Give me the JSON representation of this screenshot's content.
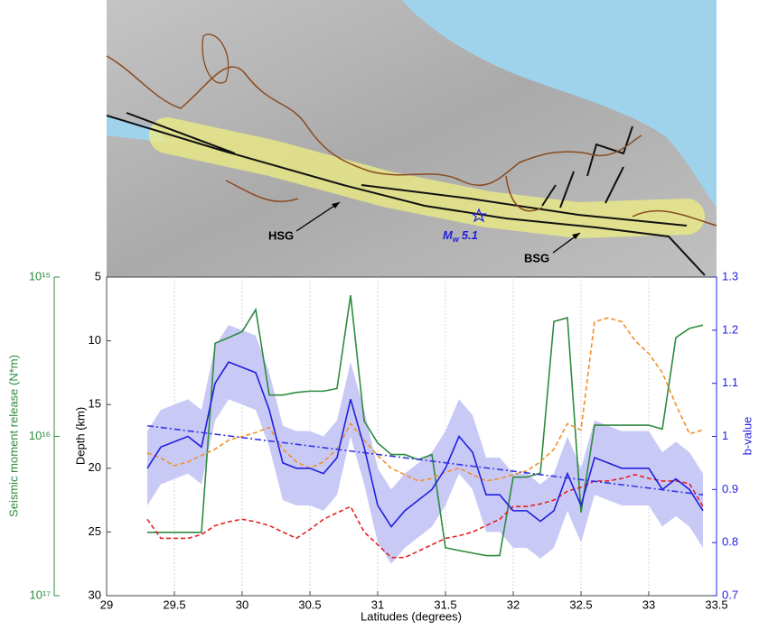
{
  "map": {
    "labels": {
      "hsg": "HSG",
      "bsg": "BSG",
      "event_symbol": "M",
      "event_subscript": "w",
      "event_value": "5.1"
    }
  },
  "chart_data": {
    "type": "line",
    "xlabel": "Latitudes (degrees)",
    "ylabel": "Depth (km)",
    "y2label": "b-value",
    "y3label": "Seismic moment release (N*m)",
    "x": [
      29.3,
      29.4,
      29.5,
      29.6,
      29.7,
      29.8,
      29.9,
      30.0,
      30.1,
      30.2,
      30.3,
      30.4,
      30.5,
      30.6,
      30.7,
      30.8,
      30.9,
      31.0,
      31.1,
      31.2,
      31.3,
      31.4,
      31.5,
      31.6,
      31.7,
      31.8,
      31.9,
      32.0,
      32.1,
      32.2,
      32.3,
      32.4,
      32.5,
      32.6,
      32.7,
      32.8,
      32.9,
      33.0,
      33.1,
      33.2,
      33.3,
      33.4
    ],
    "xlim": [
      29,
      33.5
    ],
    "xticks": [
      29,
      29.5,
      30,
      30.5,
      31,
      31.5,
      32,
      32.5,
      33,
      33.5
    ],
    "ylim": [
      30,
      5
    ],
    "yticks": [
      5,
      10,
      15,
      20,
      25,
      30
    ],
    "y2lim": [
      0.7,
      1.3
    ],
    "y2ticks": [
      0.7,
      0.8,
      0.9,
      1,
      1.1,
      1.2,
      1.3
    ],
    "y3lim": [
      1e+17,
      1000000000000000.0
    ],
    "y3scale": "log",
    "y3ticks": [
      {
        "value": 1000000000000000.0,
        "label": "10¹⁵"
      },
      {
        "value": 1e+16,
        "label": "10¹⁶"
      },
      {
        "value": 1e+17,
        "label": "10¹⁷"
      }
    ],
    "grid": true,
    "series": [
      {
        "kind": "band",
        "axis": "y2",
        "color": "#c9c9f6",
        "upper": [
          1.01,
          1.05,
          1.06,
          1.07,
          1.05,
          1.17,
          1.21,
          1.2,
          1.19,
          1.12,
          1.02,
          1.01,
          1.01,
          1.0,
          1.03,
          1.14,
          1.05,
          0.94,
          0.9,
          0.93,
          0.95,
          0.97,
          1.01,
          1.07,
          1.04,
          0.96,
          0.96,
          0.93,
          0.93,
          0.91,
          0.93,
          1.0,
          0.94,
          1.03,
          1.02,
          1.01,
          1.01,
          1.01,
          0.97,
          0.99,
          0.97,
          0.93
        ],
        "lower": [
          0.87,
          0.91,
          0.92,
          0.93,
          0.91,
          1.03,
          1.07,
          1.06,
          1.05,
          0.98,
          0.88,
          0.87,
          0.87,
          0.86,
          0.89,
          1.0,
          0.91,
          0.8,
          0.76,
          0.79,
          0.81,
          0.83,
          0.87,
          0.93,
          0.9,
          0.82,
          0.82,
          0.79,
          0.79,
          0.77,
          0.79,
          0.86,
          0.8,
          0.89,
          0.88,
          0.87,
          0.87,
          0.87,
          0.83,
          0.85,
          0.83,
          0.79
        ]
      },
      {
        "axis": "y3",
        "style": "solid",
        "color": "#2e8b3e",
        "values": [
          4e+16,
          4e+16,
          4e+16,
          4e+16,
          4e+16,
          2600000000000000.0,
          2400000000000000.0,
          2200000000000000.0,
          1600000000000000.0,
          5500000000000000.0,
          5500000000000000.0,
          5300000000000000.0,
          5200000000000000.0,
          5200000000000000.0,
          5000000000000000.0,
          1300000000000000.0,
          8000000000000000.0,
          1.1e+16,
          1.3e+16,
          1.3e+16,
          1.4e+16,
          1.3e+16,
          5e+16,
          5.2e+16,
          5.4e+16,
          5.6e+16,
          5.6e+16,
          1.8e+16,
          1.8e+16,
          1.7e+16,
          1900000000000000.0,
          1800000000000000.0,
          3e+16,
          8500000000000000.0,
          8500000000000000.0,
          8500000000000000.0,
          8500000000000000.0,
          8500000000000000.0,
          9000000000000000.0,
          2400000000000000.0,
          2100000000000000.0,
          2000000000000000.0
        ]
      },
      {
        "axis": "y",
        "style": "dashed",
        "color": "#f0902a",
        "values": [
          18.8,
          19.2,
          19.8,
          19.5,
          19.0,
          18.5,
          17.8,
          17.5,
          17.2,
          16.8,
          18.5,
          19.5,
          20.0,
          19.5,
          18.5,
          16.5,
          17.8,
          19.0,
          20.0,
          20.5,
          21.0,
          20.8,
          20.3,
          20.0,
          20.5,
          21.0,
          20.8,
          20.5,
          20.2,
          19.5,
          18.5,
          16.5,
          17.0,
          8.5,
          8.2,
          8.5,
          10.0,
          11.0,
          12.5,
          15.0,
          17.3,
          17.0
        ]
      },
      {
        "axis": "y",
        "style": "dashed",
        "color": "#e32222",
        "values": [
          24.0,
          25.5,
          25.5,
          25.5,
          25.2,
          24.5,
          24.2,
          24.0,
          24.2,
          24.5,
          25.0,
          25.5,
          24.8,
          24.0,
          23.5,
          23.0,
          25.0,
          26.0,
          27.0,
          27.0,
          26.5,
          26.0,
          25.5,
          25.3,
          25.0,
          24.5,
          24.0,
          23.0,
          23.0,
          22.8,
          22.5,
          21.8,
          21.5,
          21.0,
          21.0,
          20.8,
          20.5,
          20.8,
          21.0,
          21.0,
          21.2,
          23.0
        ]
      },
      {
        "axis": "y2",
        "style": "solid",
        "color": "#1f1fe0",
        "values": [
          0.94,
          0.98,
          0.99,
          1.0,
          0.98,
          1.1,
          1.14,
          1.13,
          1.12,
          1.05,
          0.95,
          0.94,
          0.94,
          0.93,
          0.96,
          1.07,
          0.98,
          0.87,
          0.83,
          0.86,
          0.88,
          0.9,
          0.94,
          1.0,
          0.97,
          0.89,
          0.89,
          0.86,
          0.86,
          0.84,
          0.86,
          0.93,
          0.87,
          0.96,
          0.95,
          0.94,
          0.94,
          0.94,
          0.9,
          0.92,
          0.9,
          0.86
        ]
      },
      {
        "axis": "y2",
        "style": "dashdot",
        "color": "#3535e6",
        "x": [
          29.3,
          33.4
        ],
        "values": [
          1.02,
          0.89
        ]
      }
    ]
  }
}
